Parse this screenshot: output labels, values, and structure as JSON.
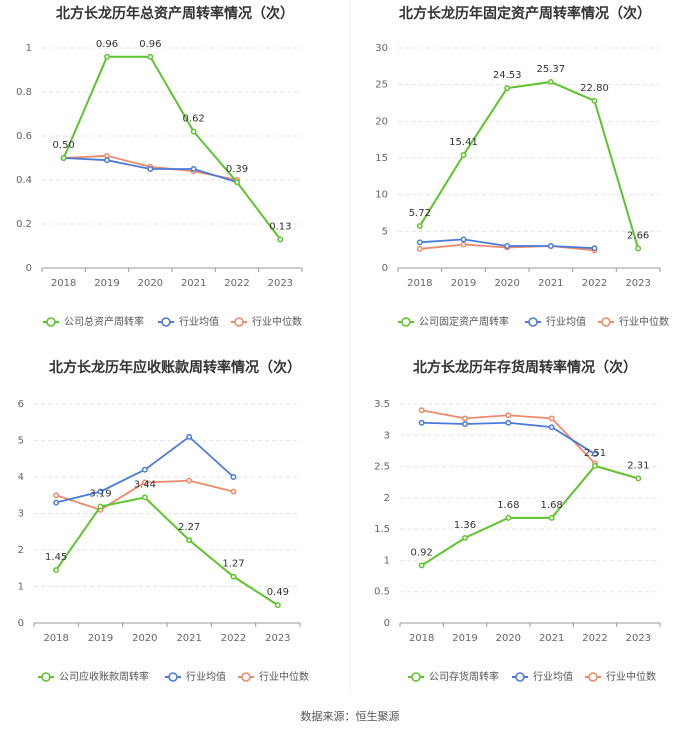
{
  "footer": {
    "source": "数据来源：恒生聚源"
  },
  "chart_data": [
    {
      "type": "line",
      "title": "北方长龙历年总资产周转率情况（次）",
      "categories": [
        "2018",
        "2019",
        "2020",
        "2021",
        "2022",
        "2023"
      ],
      "ylim": [
        0,
        1
      ],
      "yticks": [
        "0",
        "0.2",
        "0.4",
        "0.6",
        "0.8",
        "1"
      ],
      "grid": true,
      "legend": "bottom",
      "series": [
        {
          "name": "公司总资产周转率",
          "color": "#5ec42c",
          "values": [
            0.5,
            0.96,
            0.96,
            0.62,
            0.39,
            0.13
          ],
          "labels": [
            "0.50",
            "0.96",
            "0.96",
            "0.62",
            "0.39",
            "0.13"
          ]
        },
        {
          "name": "行业均值",
          "color": "#4a7bdc",
          "values": [
            0.5,
            0.49,
            0.45,
            0.45,
            0.39,
            null
          ]
        },
        {
          "name": "行业中位数",
          "color": "#f0896a",
          "values": [
            0.5,
            0.51,
            0.46,
            0.44,
            0.4,
            null
          ]
        }
      ]
    },
    {
      "type": "line",
      "title": "北方长龙历年固定资产周转率情况（次）",
      "categories": [
        "2018",
        "2019",
        "2020",
        "2021",
        "2022",
        "2023"
      ],
      "ylim": [
        0,
        30
      ],
      "yticks": [
        "0",
        "5",
        "10",
        "15",
        "20",
        "25",
        "30"
      ],
      "grid": true,
      "legend": "bottom",
      "series": [
        {
          "name": "公司固定资产周转率",
          "color": "#5ec42c",
          "values": [
            5.72,
            15.41,
            24.53,
            25.37,
            22.8,
            2.66
          ],
          "labels": [
            "5.72",
            "15.41",
            "24.53",
            "25.37",
            "22.80",
            "2.66"
          ]
        },
        {
          "name": "行业均值",
          "color": "#4a7bdc",
          "values": [
            3.5,
            3.9,
            3.0,
            3.0,
            2.7,
            null
          ]
        },
        {
          "name": "行业中位数",
          "color": "#f0896a",
          "values": [
            2.6,
            3.2,
            2.8,
            3.0,
            2.4,
            null
          ]
        }
      ]
    },
    {
      "type": "line",
      "title": "北方长龙历年应收账款周转率情况（次）",
      "categories": [
        "2018",
        "2019",
        "2020",
        "2021",
        "2022",
        "2023"
      ],
      "ylim": [
        0,
        6
      ],
      "yticks": [
        "0",
        "1",
        "2",
        "3",
        "4",
        "5",
        "6"
      ],
      "grid": true,
      "legend": "bottom",
      "series": [
        {
          "name": "公司应收账款周转率",
          "color": "#5ec42c",
          "values": [
            1.45,
            3.19,
            3.44,
            2.27,
            1.27,
            0.49
          ],
          "labels": [
            "1.45",
            "3.19",
            "3.44",
            "2.27",
            "1.27",
            "0.49"
          ]
        },
        {
          "name": "行业均值",
          "color": "#4a7bdc",
          "values": [
            3.3,
            3.6,
            4.2,
            5.1,
            4.0,
            null
          ]
        },
        {
          "name": "行业中位数",
          "color": "#f0896a",
          "values": [
            3.5,
            3.1,
            3.85,
            3.9,
            3.6,
            null
          ]
        }
      ]
    },
    {
      "type": "line",
      "title": "北方长龙历年存货周转率情况（次）",
      "categories": [
        "2018",
        "2019",
        "2020",
        "2021",
        "2022",
        "2023"
      ],
      "ylim": [
        0,
        3.5
      ],
      "yticks": [
        "0",
        "0.5",
        "1",
        "1.5",
        "2",
        "2.5",
        "3",
        "3.5"
      ],
      "grid": true,
      "legend": "bottom",
      "series": [
        {
          "name": "公司存货周转率",
          "color": "#5ec42c",
          "values": [
            0.92,
            1.36,
            1.68,
            1.68,
            2.51,
            2.31
          ],
          "labels": [
            "0.92",
            "1.36",
            "1.68",
            "1.68",
            "2.51",
            "2.31"
          ]
        },
        {
          "name": "行业均值",
          "color": "#4a7bdc",
          "values": [
            3.2,
            3.18,
            3.2,
            3.13,
            2.7,
            null
          ]
        },
        {
          "name": "行业中位数",
          "color": "#f0896a",
          "values": [
            3.4,
            3.27,
            3.32,
            3.27,
            2.55,
            null
          ]
        }
      ]
    }
  ]
}
